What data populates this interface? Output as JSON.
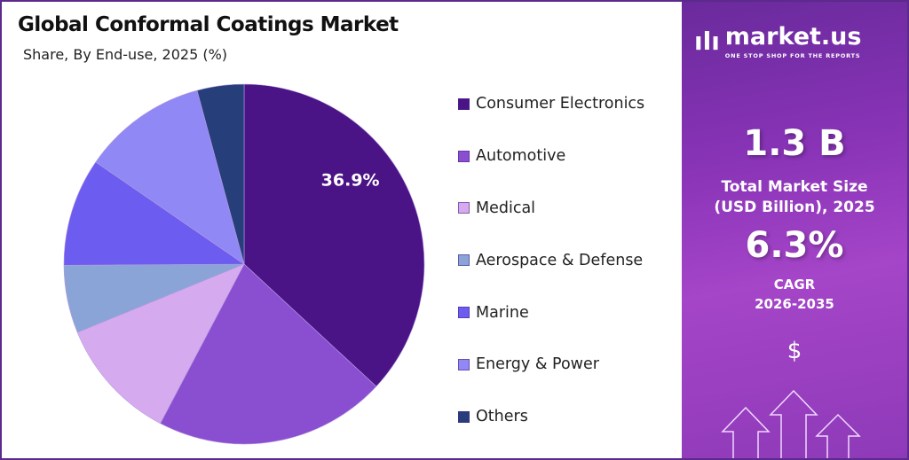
{
  "title": "Global Conformal Coatings Market",
  "subtitle": "Share, By End-use, 2025 (%)",
  "chart_data": {
    "type": "pie",
    "title": "Global Conformal Coatings Market",
    "subtitle": "Share, By End-use, 2025 (%)",
    "categories": [
      "Consumer Electronics",
      "Automotive",
      "Medical",
      "Aerospace & Defense",
      "Marine",
      "Energy & Power",
      "Others"
    ],
    "values": [
      36.9,
      20.8,
      11.1,
      6.1,
      9.7,
      11.2,
      4.2
    ],
    "colors": [
      "#4a1486",
      "#8a4fd0",
      "#d6aaee",
      "#8ba4d8",
      "#6c5cf0",
      "#8f88f5",
      "#263f7a"
    ],
    "data_labels": [
      "36.9%",
      "",
      "",
      "",
      "",
      "",
      ""
    ],
    "start": "12 o'clock, clockwise",
    "legend_position": "right"
  },
  "sidebar": {
    "brand": "market.us",
    "tagline": "ONE STOP SHOP FOR THE REPORTS",
    "market_size": "1.3 B",
    "market_size_label_1": "Total Market Size",
    "market_size_label_2": "(USD Billion), 2025",
    "cagr": "6.3%",
    "cagr_label": "CAGR",
    "cagr_period": "2026-2035",
    "dollar": "$"
  }
}
